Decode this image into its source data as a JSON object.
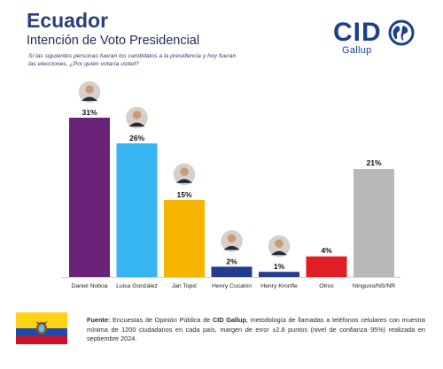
{
  "header": {
    "title": "Ecuador",
    "subtitle": "Intención de Voto Presidencial",
    "question": "Si las siguientes personas fueran los candidatos a la presidencia y hoy fueran las elecciones, ¿Por quién votaría usted?"
  },
  "logo": {
    "brand": "CID",
    "sub": "Gallup",
    "icon": "globe-icon"
  },
  "chart_data": {
    "type": "bar",
    "title": "Intención de Voto Presidencial",
    "categories": [
      "Daniel Noboa",
      "Luisa González",
      "Jan Topić",
      "Henry Cucalón",
      "Henry Kronfle",
      "Otros",
      "Ninguno/NS/NR"
    ],
    "values": [
      31,
      26,
      15,
      2,
      1,
      4,
      21
    ],
    "value_labels": [
      "31%",
      "26%",
      "15%",
      "2%",
      "1%",
      "4%",
      "21%"
    ],
    "colors": [
      "#6a2477",
      "#37b5f2",
      "#f4b400",
      "#243d8f",
      "#243d8f",
      "#e11d25",
      "#b8b8b8"
    ],
    "ylim": [
      0,
      35
    ],
    "grid": false,
    "legend": "none",
    "candidate_photo": "portrait-icon"
  },
  "footer": {
    "source_label": "Fuente:",
    "source_text_1": " Encuestas de Opinión Pública de ",
    "source_brand": "CID Gallup",
    "source_text_2": ", metodología de llamadas a teléfonos celulares con muestra mínima de 1200 ciudadanos en cada país, margen de error ±2.8 puntos (nivel de confianza 95%) realizada en septiembre 2024.",
    "flag_icon": "ecuador-flag-icon"
  }
}
